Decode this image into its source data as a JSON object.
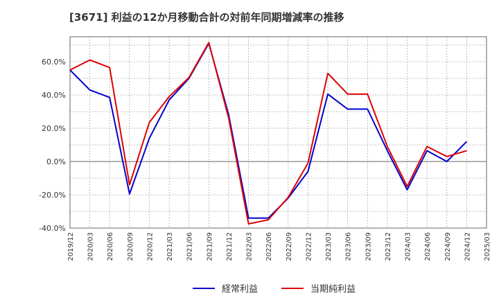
{
  "chart_data": {
    "type": "line",
    "title": "[3671]  利益の12か月移動合計の対前年同期増減率の推移",
    "xlabel": "",
    "ylabel": "",
    "ylim": [
      -40,
      75
    ],
    "y_ticks": [
      "60.0%",
      "40.0%",
      "20.0%",
      "0.0%",
      "-20.0%",
      "-40.0%"
    ],
    "y_tick_values": [
      60,
      40,
      20,
      0,
      -20,
      -40
    ],
    "categories": [
      "2019/12",
      "2020/03",
      "2020/06",
      "2020/09",
      "2020/12",
      "2021/03",
      "2021/06",
      "2021/09",
      "2021/12",
      "2022/03",
      "2022/06",
      "2022/09",
      "2022/12",
      "2023/03",
      "2023/06",
      "2023/09",
      "2023/12",
      "2024/03",
      "2024/06",
      "2024/09",
      "2024/12",
      "2025/03"
    ],
    "grid": true,
    "legend_position": "bottom",
    "series": [
      {
        "name": "経常利益",
        "color": "#0000cc",
        "x": [
          "2019/12",
          "2020/03",
          "2020/06",
          "2020/09",
          "2020/12",
          "2021/03",
          "2021/06",
          "2021/09",
          "2021/12",
          "2022/03",
          "2022/06",
          "2022/09",
          "2022/12",
          "2023/03",
          "2023/06",
          "2023/09",
          "2023/12",
          "2024/03",
          "2024/06",
          "2024/09",
          "2024/12"
        ],
        "values": [
          55.0,
          43.0,
          38.5,
          -19.5,
          14.0,
          37.0,
          50.0,
          71.0,
          28.0,
          -34.0,
          -34.0,
          -22.0,
          -6.0,
          40.5,
          31.5,
          31.5,
          6.5,
          -17.0,
          6.5,
          0.0,
          12.0
        ]
      },
      {
        "name": "当期純利益",
        "color": "#dd0000",
        "x": [
          "2019/12",
          "2020/03",
          "2020/06",
          "2020/09",
          "2020/12",
          "2021/03",
          "2021/06",
          "2021/09",
          "2021/12",
          "2022/03",
          "2022/06",
          "2022/09",
          "2022/12",
          "2023/03",
          "2023/06",
          "2023/09",
          "2023/12",
          "2024/03",
          "2024/06",
          "2024/09",
          "2024/12"
        ],
        "values": [
          55.0,
          61.0,
          56.5,
          -14.0,
          23.5,
          39.0,
          50.5,
          71.5,
          26.0,
          -37.5,
          -35.0,
          -21.5,
          -1.0,
          53.0,
          40.5,
          40.5,
          9.0,
          -15.0,
          9.0,
          3.0,
          6.5
        ]
      }
    ]
  }
}
